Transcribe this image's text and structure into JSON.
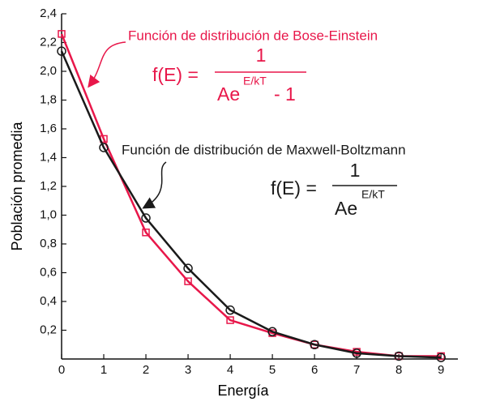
{
  "chart_data": {
    "type": "line",
    "xlabel": "Energía",
    "ylabel": "Población promedia",
    "x": [
      0,
      1,
      2,
      3,
      4,
      5,
      6,
      7,
      8,
      9
    ],
    "xlim": [
      0,
      9.4
    ],
    "ylim": [
      0,
      2.4
    ],
    "xticks": [
      0,
      1,
      2,
      3,
      4,
      5,
      6,
      7,
      8,
      9
    ],
    "yticks": [
      {
        "value": 0.2,
        "label": "0,2"
      },
      {
        "value": 0.4,
        "label": "0,4"
      },
      {
        "value": 0.6,
        "label": "0,6"
      },
      {
        "value": 0.8,
        "label": "0,8"
      },
      {
        "value": 1.0,
        "label": "1,0"
      },
      {
        "value": 1.2,
        "label": "1,2"
      },
      {
        "value": 1.4,
        "label": "1,4"
      },
      {
        "value": 1.6,
        "label": "1,6"
      },
      {
        "value": 1.8,
        "label": "1,8"
      },
      {
        "value": 2.0,
        "label": "2,0"
      },
      {
        "value": 2.2,
        "label": "2,2"
      },
      {
        "value": 2.4,
        "label": "2,4"
      }
    ],
    "series": [
      {
        "name": "Función de distribución de Maxwell-Boltzmann",
        "color": "#1a1a1a",
        "marker": "circle",
        "values": [
          2.14,
          1.47,
          0.98,
          0.63,
          0.34,
          0.19,
          0.1,
          0.04,
          0.02,
          0.01
        ],
        "formula": {
          "lhs": "f(E) =",
          "numerator": "1",
          "denominator": "Ae",
          "exponent": "E/kT"
        }
      },
      {
        "name": "Función de distribución de Bose-Einstein",
        "color": "#e8174a",
        "marker": "square",
        "values": [
          2.26,
          1.53,
          0.88,
          0.54,
          0.27,
          0.18,
          0.1,
          0.05,
          0.02,
          0.02
        ],
        "formula": {
          "lhs": "f(E) =",
          "numerator": "1",
          "denominator": "Ae",
          "exponent": "E/kT",
          "suffix": "- 1"
        }
      }
    ]
  }
}
